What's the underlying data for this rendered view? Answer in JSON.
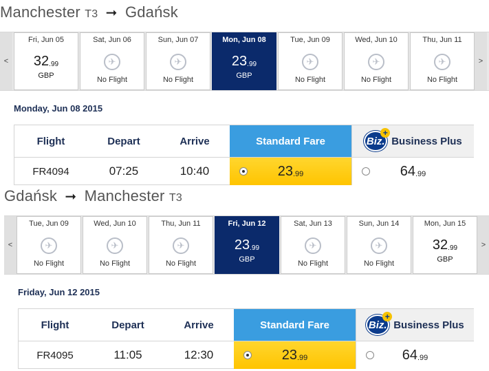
{
  "outbound": {
    "origin": "Manchester",
    "origin_terminal": "T3",
    "destination": "Gdańsk",
    "days": [
      {
        "label": "Fri, Jun 05",
        "price": "32",
        "cents": ".99",
        "currency": "GBP",
        "selected": false
      },
      {
        "label": "Sat, Jun 06",
        "no_flight": "No Flight",
        "icon": "no-flight-icon"
      },
      {
        "label": "Sun, Jun 07",
        "no_flight": "No Flight",
        "icon": "no-flight-icon"
      },
      {
        "label": "Mon, Jun 08",
        "price": "23",
        "cents": ".99",
        "currency": "GBP",
        "selected": true
      },
      {
        "label": "Tue, Jun 09",
        "no_flight": "No Flight",
        "icon": "no-flight-icon"
      },
      {
        "label": "Wed, Jun 10",
        "no_flight": "No Flight",
        "icon": "no-flight-icon"
      },
      {
        "label": "Thu, Jun 11",
        "no_flight": "No Flight",
        "icon": "no-flight-icon"
      }
    ],
    "selected_date": "Monday, Jun 08 2015",
    "headers": {
      "flight": "Flight",
      "depart": "Depart",
      "arrive": "Arrive",
      "standard": "Standard Fare",
      "business": "Business Plus",
      "biz_logo": "Biz."
    },
    "row": {
      "flight": "FR4094",
      "depart": "07:25",
      "arrive": "10:40",
      "standard_price": "23",
      "standard_cents": ".99",
      "business_price": "64",
      "business_cents": ".99"
    }
  },
  "inbound": {
    "origin": "Gdańsk",
    "destination": "Manchester",
    "destination_terminal": "T3",
    "days": [
      {
        "label": "Tue, Jun 09",
        "no_flight": "No Flight",
        "icon": "no-flight-icon"
      },
      {
        "label": "Wed, Jun 10",
        "no_flight": "No Flight",
        "icon": "no-flight-icon"
      },
      {
        "label": "Thu, Jun 11",
        "no_flight": "No Flight",
        "icon": "no-flight-icon"
      },
      {
        "label": "Fri, Jun 12",
        "price": "23",
        "cents": ".99",
        "currency": "GBP",
        "selected": true
      },
      {
        "label": "Sat, Jun 13",
        "no_flight": "No Flight",
        "icon": "no-flight-icon"
      },
      {
        "label": "Sun, Jun 14",
        "no_flight": "No Flight",
        "icon": "no-flight-icon"
      },
      {
        "label": "Mon, Jun 15",
        "price": "32",
        "cents": ".99",
        "currency": "GBP",
        "selected": false
      }
    ],
    "selected_date": "Friday, Jun 12 2015",
    "headers": {
      "flight": "Flight",
      "depart": "Depart",
      "arrive": "Arrive",
      "standard": "Standard Fare",
      "business": "Business Plus",
      "biz_logo": "Biz."
    },
    "row": {
      "flight": "FR4095",
      "depart": "11:05",
      "arrive": "12:30",
      "standard_price": "23",
      "standard_cents": ".99",
      "business_price": "64",
      "business_cents": ".99"
    }
  },
  "nav": {
    "prev": "<",
    "next": ">"
  },
  "colors": {
    "selected_day": "#0b2a6b",
    "standard_header": "#3a9de0",
    "standard_cell": "#ffc400",
    "heading": "#1d2f55"
  }
}
